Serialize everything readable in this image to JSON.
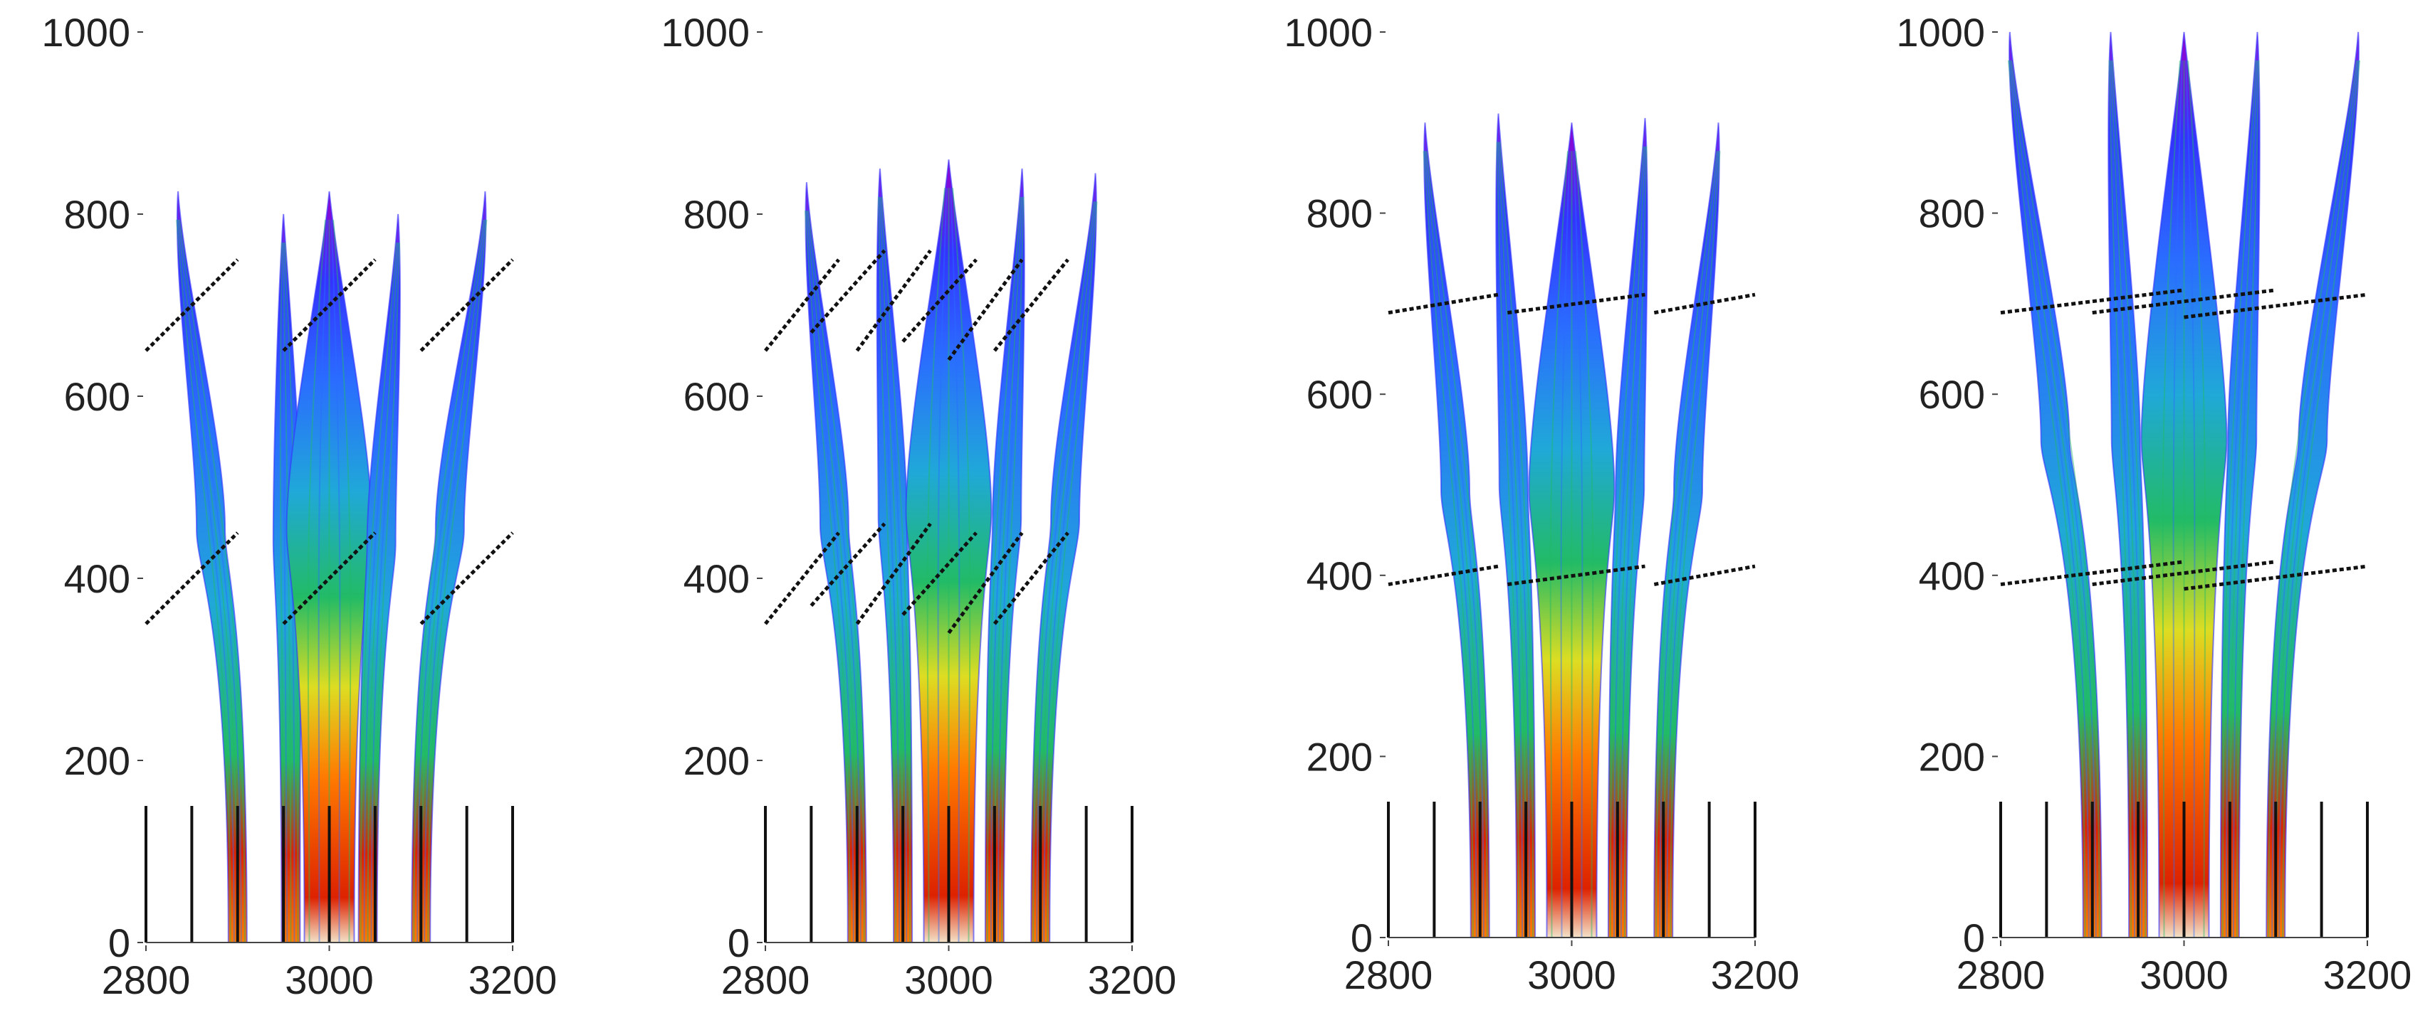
{
  "figure": {
    "panel_count": 4,
    "axes": {
      "x_ticks": [
        2800,
        3000,
        3200
      ],
      "y_ticks": [
        0,
        200,
        400,
        600,
        800,
        1000
      ],
      "xlim": [
        2800,
        3200
      ],
      "ylim": [
        0,
        1000
      ]
    },
    "panels": [
      {
        "x_tick_labels": [
          "2800",
          "3000",
          "3200"
        ],
        "y_tick_labels": [
          "0",
          "200",
          "400",
          "600",
          "800",
          "1000"
        ],
        "base_markers_x": [
          2800,
          2850,
          2900,
          2950,
          3000,
          3050,
          3100,
          3150,
          3200
        ],
        "plumes": [
          {
            "x_base": 2900,
            "x_top": 2835,
            "top": 825
          },
          {
            "x_base": 2958,
            "x_top": 2950,
            "top": 800
          },
          {
            "x_base": 3000,
            "x_top": 3000,
            "top": 825
          },
          {
            "x_base": 3042,
            "x_top": 3075,
            "top": 800
          },
          {
            "x_base": 3100,
            "x_top": 3170,
            "top": 825
          }
        ],
        "dashed_lines": [
          {
            "x1": 2800,
            "y1": 650,
            "x2": 2900,
            "y2": 750
          },
          {
            "x1": 2950,
            "y1": 650,
            "x2": 3050,
            "y2": 750
          },
          {
            "x1": 3100,
            "y1": 650,
            "x2": 3200,
            "y2": 750
          },
          {
            "x1": 2800,
            "y1": 350,
            "x2": 2900,
            "y2": 450
          },
          {
            "x1": 2950,
            "y1": 350,
            "x2": 3050,
            "y2": 450
          },
          {
            "x1": 3100,
            "y1": 350,
            "x2": 3200,
            "y2": 450
          }
        ]
      },
      {
        "x_tick_labels": [
          "2800",
          "3000",
          "3200"
        ],
        "y_tick_labels": [
          "0",
          "200",
          "400",
          "600",
          "800",
          "1000"
        ],
        "base_markers_x": [
          2800,
          2850,
          2900,
          2950,
          3000,
          3050,
          3100,
          3150,
          3200
        ],
        "plumes": [
          {
            "x_base": 2900,
            "x_top": 2845,
            "top": 835
          },
          {
            "x_base": 2950,
            "x_top": 2925,
            "top": 850
          },
          {
            "x_base": 3000,
            "x_top": 3000,
            "top": 860
          },
          {
            "x_base": 3050,
            "x_top": 3080,
            "top": 850
          },
          {
            "x_base": 3100,
            "x_top": 3160,
            "top": 845
          }
        ],
        "dashed_lines": [
          {
            "x1": 2800,
            "y1": 650,
            "x2": 2880,
            "y2": 750
          },
          {
            "x1": 2850,
            "y1": 670,
            "x2": 2930,
            "y2": 760
          },
          {
            "x1": 2900,
            "y1": 650,
            "x2": 2980,
            "y2": 760
          },
          {
            "x1": 2950,
            "y1": 660,
            "x2": 3030,
            "y2": 750
          },
          {
            "x1": 3000,
            "y1": 640,
            "x2": 3080,
            "y2": 750
          },
          {
            "x1": 3050,
            "y1": 650,
            "x2": 3130,
            "y2": 750
          },
          {
            "x1": 2800,
            "y1": 350,
            "x2": 2880,
            "y2": 450
          },
          {
            "x1": 2850,
            "y1": 370,
            "x2": 2930,
            "y2": 460
          },
          {
            "x1": 2900,
            "y1": 350,
            "x2": 2980,
            "y2": 460
          },
          {
            "x1": 2950,
            "y1": 360,
            "x2": 3030,
            "y2": 450
          },
          {
            "x1": 3000,
            "y1": 340,
            "x2": 3080,
            "y2": 450
          },
          {
            "x1": 3050,
            "y1": 350,
            "x2": 3130,
            "y2": 450
          }
        ]
      },
      {
        "x_tick_labels": [
          "2800",
          "3000",
          "3200"
        ],
        "y_tick_labels": [
          "0",
          "200",
          "400",
          "600",
          "800",
          "1000"
        ],
        "base_markers_x": [
          2800,
          2850,
          2900,
          2950,
          3000,
          3050,
          3100,
          3150,
          3200
        ],
        "plumes": [
          {
            "x_base": 2900,
            "x_top": 2840,
            "top": 900
          },
          {
            "x_base": 2950,
            "x_top": 2920,
            "top": 910
          },
          {
            "x_base": 3000,
            "x_top": 3000,
            "top": 900
          },
          {
            "x_base": 3050,
            "x_top": 3080,
            "top": 905
          },
          {
            "x_base": 3100,
            "x_top": 3160,
            "top": 900
          }
        ],
        "dashed_lines": [
          {
            "x1": 2800,
            "y1": 690,
            "x2": 2920,
            "y2": 710
          },
          {
            "x1": 2930,
            "y1": 690,
            "x2": 3080,
            "y2": 710
          },
          {
            "x1": 3090,
            "y1": 690,
            "x2": 3200,
            "y2": 710
          },
          {
            "x1": 2800,
            "y1": 390,
            "x2": 2920,
            "y2": 410
          },
          {
            "x1": 2930,
            "y1": 390,
            "x2": 3080,
            "y2": 410
          },
          {
            "x1": 3090,
            "y1": 390,
            "x2": 3200,
            "y2": 410
          }
        ]
      },
      {
        "x_tick_labels": [
          "2800",
          "3000",
          "3200"
        ],
        "y_tick_labels": [
          "0",
          "200",
          "400",
          "600",
          "800",
          "1000"
        ],
        "base_markers_x": [
          2800,
          2850,
          2900,
          2950,
          3000,
          3050,
          3100,
          3150,
          3200
        ],
        "plumes": [
          {
            "x_base": 2900,
            "x_top": 2810,
            "top": 1000
          },
          {
            "x_base": 2950,
            "x_top": 2920,
            "top": 1000
          },
          {
            "x_base": 3000,
            "x_top": 3000,
            "top": 1000
          },
          {
            "x_base": 3050,
            "x_top": 3080,
            "top": 1000
          },
          {
            "x_base": 3100,
            "x_top": 3190,
            "top": 1000
          }
        ],
        "dashed_lines": [
          {
            "x1": 2800,
            "y1": 690,
            "x2": 3000,
            "y2": 715
          },
          {
            "x1": 2900,
            "y1": 690,
            "x2": 3100,
            "y2": 715
          },
          {
            "x1": 3000,
            "y1": 685,
            "x2": 3200,
            "y2": 710
          },
          {
            "x1": 2800,
            "y1": 390,
            "x2": 3000,
            "y2": 415
          },
          {
            "x1": 2900,
            "y1": 390,
            "x2": 3100,
            "y2": 415
          },
          {
            "x1": 3000,
            "y1": 385,
            "x2": 3200,
            "y2": 410
          }
        ]
      }
    ],
    "colors": {
      "axis": "#444444",
      "tick_text": "#222222",
      "marker": "#111111",
      "dashed": "#111111",
      "plume_top": "#9900cc",
      "plume_upper": "#3333ff",
      "plume_mid": "#2a6cff",
      "plume_green": "#22bb66",
      "plume_yellow": "#dddd22",
      "plume_base": "#dd2200",
      "plume_core_light": "#f3e2c8"
    }
  }
}
